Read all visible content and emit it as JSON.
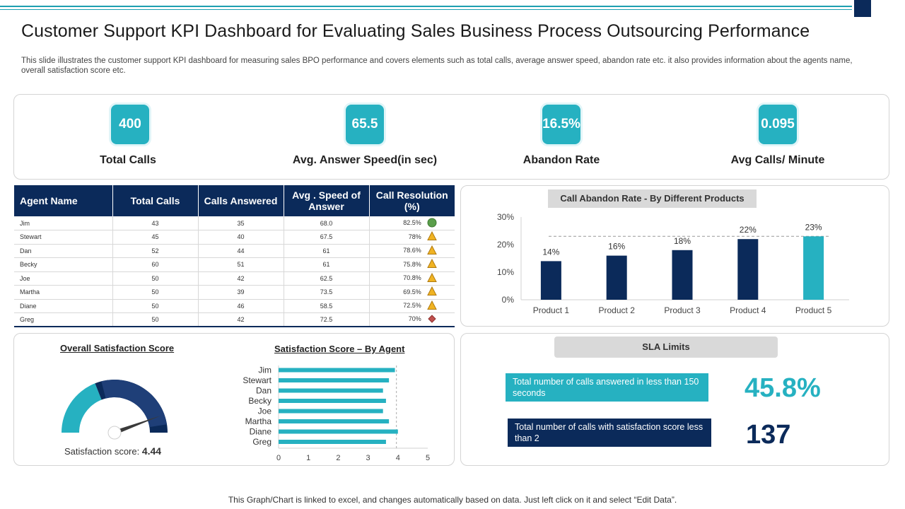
{
  "header": {
    "title": "Customer Support KPI Dashboard for Evaluating Sales Business Process Outsourcing Performance",
    "subtitle": "This slide illustrates the customer support KPI dashboard for measuring sales BPO performance and covers elements such as total calls, average answer speed, abandon rate etc. it also provides information about the agents name, overall satisfaction score etc."
  },
  "kpis": [
    {
      "value": "400",
      "label": "Total Calls"
    },
    {
      "value": "65.5",
      "label": "Avg. Answer  Speed(in  sec)"
    },
    {
      "value": "16.5%",
      "label": "Abandon  Rate"
    },
    {
      "value": "0.095",
      "label": "Avg Calls/ Minute"
    }
  ],
  "agent_table": {
    "headers": [
      "Agent Name",
      "Total Calls",
      "Calls Answered",
      "Avg . Speed of Answer",
      "Call Resolution (%)"
    ],
    "rows": [
      {
        "name": "Jim",
        "total": "43",
        "answered": "35",
        "speed": "68.0",
        "resolution": "82.5%",
        "status": "good"
      },
      {
        "name": "Stewart",
        "total": "45",
        "answered": "40",
        "speed": "67.5",
        "resolution": "78%",
        "status": "warning"
      },
      {
        "name": "Dan",
        "total": "52",
        "answered": "44",
        "speed": "61",
        "resolution": "78.6%",
        "status": "warning"
      },
      {
        "name": "Becky",
        "total": "60",
        "answered": "51",
        "speed": "61",
        "resolution": "75.8%",
        "status": "warning"
      },
      {
        "name": "Joe",
        "total": "50",
        "answered": "42",
        "speed": "62.5",
        "resolution": "70.8%",
        "status": "warning"
      },
      {
        "name": "Martha",
        "total": "50",
        "answered": "39",
        "speed": "73.5",
        "resolution": "69.5%",
        "status": "warning"
      },
      {
        "name": "Diane",
        "total": "50",
        "answered": "46",
        "speed": "58.5",
        "resolution": "72.5%",
        "status": "warning"
      },
      {
        "name": "Greg",
        "total": "50",
        "answered": "42",
        "speed": "72.5",
        "resolution": "70%",
        "status": "bad"
      }
    ],
    "status_colors": {
      "good": "#5a9e4b",
      "warning": "#f0b323",
      "bad": "#c0504d"
    }
  },
  "chart_data": [
    {
      "type": "bar",
      "title": "Call Abandon Rate - By Different Products",
      "categories": [
        "Product 1",
        "Product 2",
        "Product 3",
        "Product 4",
        "Product 5"
      ],
      "values": [
        14,
        16,
        18,
        22,
        23
      ],
      "data_labels": [
        "14%",
        "16%",
        "18%",
        "22%",
        "23%"
      ],
      "y_ticks": [
        "0%",
        "10%",
        "20%",
        "30%"
      ],
      "ylim": [
        0,
        30
      ],
      "target_line": 23,
      "colors": [
        "#0b2a5a",
        "#0b2a5a",
        "#0b2a5a",
        "#0b2a5a",
        "#26b1c1"
      ]
    },
    {
      "type": "bar",
      "orientation": "horizontal",
      "title": "Satisfaction Score – By Agent",
      "categories": [
        "Jim",
        "Stewart",
        "Dan",
        "Becky",
        "Joe",
        "Martha",
        "Diane",
        "Greg"
      ],
      "values": [
        3.9,
        3.7,
        3.5,
        3.6,
        3.5,
        3.7,
        4.0,
        3.6
      ],
      "x_ticks": [
        "0",
        "1",
        "2",
        "3",
        "4",
        "5"
      ],
      "xlim": [
        0,
        5
      ],
      "reference_line": 3.95,
      "color": "#26b1c1"
    },
    {
      "type": "gauge",
      "title": "Overall Satisfaction Score",
      "value": 4.44,
      "max": 5,
      "value_label_prefix": "Satisfaction score: ",
      "value_label": "4.44",
      "colors": [
        "#26b1c1",
        "#0b2a5a",
        "#1f3f78"
      ]
    }
  ],
  "sla": {
    "title": "SLA Limits",
    "items": [
      {
        "text": "Total number of calls answered in less than 150 seconds",
        "value": "45.8%",
        "box_color": "#26b1c1",
        "value_color": "#26b1c1"
      },
      {
        "text": "Total number of calls with satisfaction score less than 2",
        "value": "137",
        "box_color": "#0b2a5a",
        "value_color": "#0b2a5a"
      }
    ]
  },
  "footer": "This Graph/Chart is linked to excel,  and changes automatically based on data. Just left click on it and select “Edit Data”."
}
